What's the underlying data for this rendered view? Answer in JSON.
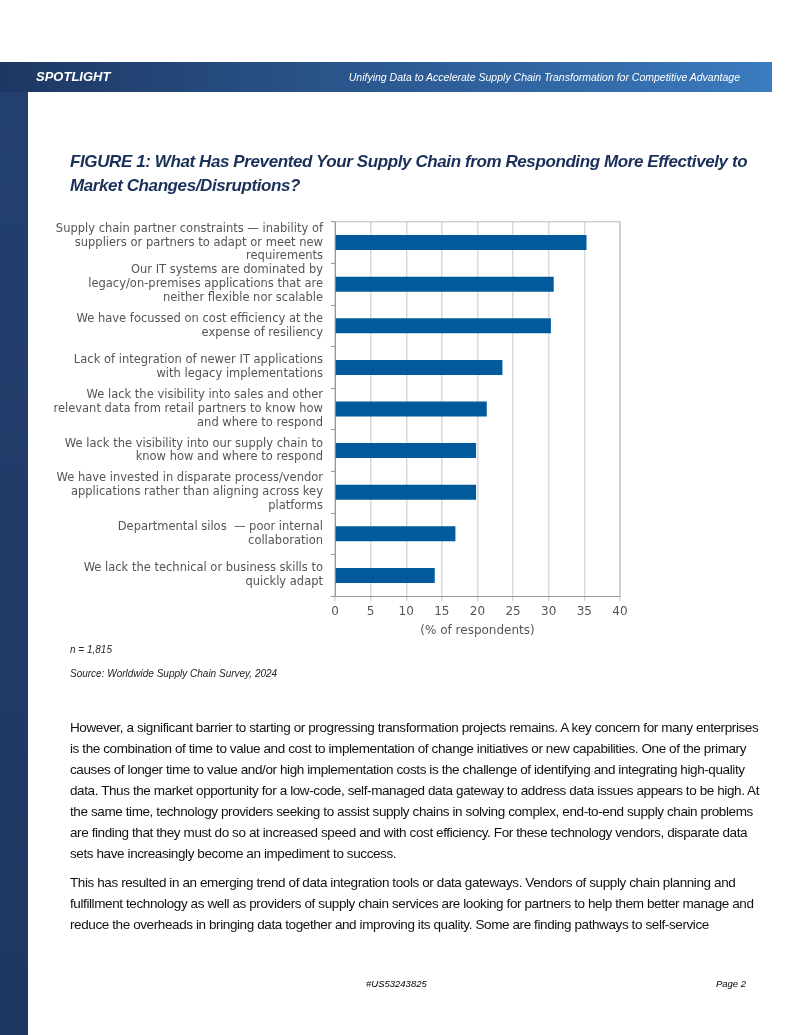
{
  "chart_data": {
    "type": "bar",
    "orientation": "horizontal",
    "title": "FIGURE 1: What Has Prevented Your Supply Chain from Responding More Effectively to Market Changes/Disruptions?",
    "categories": [
      "Supply chain partner constraints — inability of suppliers or partners to adapt or meet new requirements",
      "Our IT systems are dominated by legacy/on-premises applications that are neither flexible nor scalable",
      "We have focussed on cost efficiency at the expense of resiliency",
      "Lack of integration of newer IT applications with legacy implementations",
      "We lack the visibility into sales and other relevant data from retail partners to know how and where to respond",
      "We lack the visibility into our supply chain to know how and where to respond",
      "We have invested in disparate process/vendor applications rather than aligning across key platforms",
      "Departmental silos  — poor internal collaboration",
      "We lack the technical or business skills to quickly adapt"
    ],
    "values": [
      35.3,
      30.7,
      30.3,
      23.5,
      21.3,
      19.8,
      19.8,
      16.9,
      14.0
    ],
    "color": "#005a9c",
    "xlim": [
      0,
      40
    ],
    "xticks": [
      0,
      5,
      10,
      15,
      20,
      25,
      30,
      35,
      40
    ],
    "xlabel": "(% of respondents)",
    "grid": "x",
    "annotations": [
      "SPOTLIGHT",
      "Unifying Data to Accelerate Supply Chain Transformation for Competitive Advantage",
      "n = 1,815",
      "Source: Worldwide Supply Chain Survey, 2024",
      "However, a significant barrier to starting or progressing transformation projects remains. A key concern for many enterprises is the combination of time to value and cost to implementation of change initiatives or new capabilities. One of the primary causes of longer time to value and/or high implementation costs is the challenge of identifying and integrating high-quality data. Thus the market opportunity for a low-code, self-managed data gateway to address data issues appears to be high. At the same time, technology providers seeking to assist supply chains in solving complex, end-to-end supply chain problems are finding that they must do so at increased speed and with cost efficiency. For these technology vendors, disparate data sets have increasingly become an impediment to success.",
      "This has resulted in an emerging trend of data integration tools or data gateways. Vendors of supply chain planning and fulfillment technology as well as providers of supply chain services are looking for partners to help them better manage and reduce the overheads in bringing data together and improving its quality. Some are finding pathways to self-service",
      "#US53243825",
      "Page 2"
    ]
  }
}
